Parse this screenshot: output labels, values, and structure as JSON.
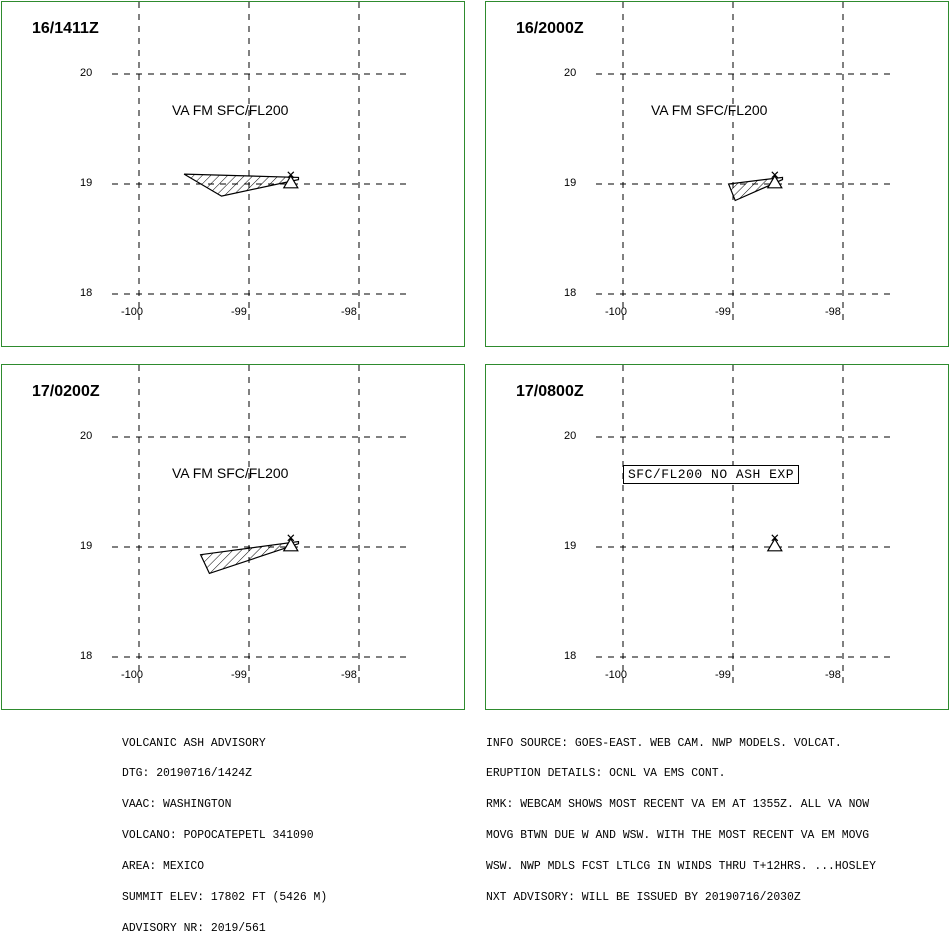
{
  "panels": [
    {
      "title": "16/1411Z",
      "label": "VA FM SFC/FL200",
      "label_boxed": false,
      "ash_polygon": [
        [
          -99.59,
          19.09
        ],
        [
          -99.25,
          18.89
        ],
        [
          -98.55,
          19.04
        ],
        [
          -98.55,
          19.06
        ]
      ],
      "has_ash": true
    },
    {
      "title": "16/2000Z",
      "label": "VA FM SFC/FL200",
      "label_boxed": false,
      "ash_polygon": [
        [
          -99.04,
          19.0
        ],
        [
          -98.98,
          18.85
        ],
        [
          -98.55,
          19.04
        ],
        [
          -98.55,
          19.06
        ]
      ],
      "has_ash": true
    },
    {
      "title": "17/0200Z",
      "label": "VA FM SFC/FL200",
      "label_boxed": false,
      "ash_polygon": [
        [
          -99.44,
          18.93
        ],
        [
          -99.36,
          18.76
        ],
        [
          -98.55,
          19.03
        ],
        [
          -98.55,
          19.05
        ]
      ],
      "has_ash": true
    },
    {
      "title": "17/0800Z",
      "label": "SFC/FL200 NO ASH EXP",
      "label_boxed": true,
      "ash_polygon": [],
      "has_ash": false
    }
  ],
  "axes": {
    "lon_ticks": [
      -100,
      -99,
      -98
    ],
    "lat_ticks": [
      20,
      19,
      18
    ],
    "lon_labels": [
      "-100",
      "-99",
      "-98"
    ],
    "lat_labels": [
      "20",
      "19",
      "18"
    ]
  },
  "volcano": {
    "lon": -98.62,
    "lat": 19.02
  },
  "advisory_left": [
    "VOLCANIC ASH ADVISORY",
    "DTG: 20190716/1424Z",
    "VAAC: WASHINGTON",
    "VOLCANO: POPOCATEPETL 341090",
    "AREA: MEXICO",
    "SUMMIT ELEV: 17802 FT (5426 M)",
    "ADVISORY NR: 2019/561"
  ],
  "advisory_right": [
    "INFO SOURCE: GOES-EAST. WEB CAM. NWP MODELS. VOLCAT.",
    "ERUPTION DETAILS: OCNL VA EMS CONT.",
    "RMK: WEBCAM SHOWS MOST RECENT VA EM AT 1355Z. ALL VA NOW",
    "MOVG BTWN DUE W AND WSW. WITH THE MOST RECENT VA EM MOVG",
    "WSW. NWP MDLS FCST LTLCG IN WINDS THRU T+12HRS. ...HOSLEY",
    "NXT ADVISORY: WILL BE ISSUED BY 20190716/2030Z"
  ],
  "colors": {
    "frame": "#2e8b2e",
    "ink": "#000000"
  }
}
